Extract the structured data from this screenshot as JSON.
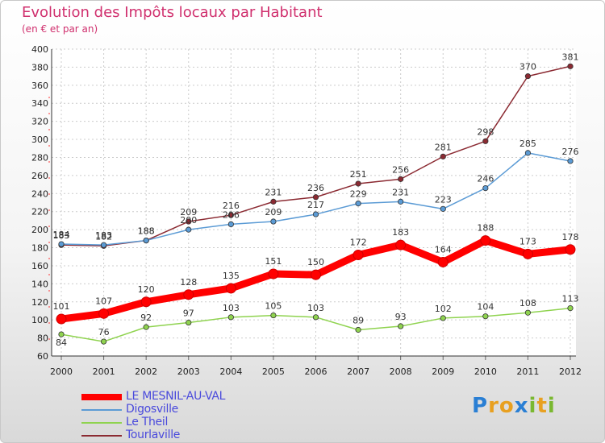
{
  "chart_data": {
    "type": "line",
    "title": "Evolution des Impôts locaux par Habitant",
    "subtitle": "(en € et par an)",
    "xlabel": "",
    "ylabel": "",
    "categories": [
      "2000",
      "2001",
      "2002",
      "2003",
      "2004",
      "2005",
      "2006",
      "2007",
      "2008",
      "2009",
      "2010",
      "2011",
      "2012"
    ],
    "ylim": [
      60,
      400
    ],
    "yticks": [
      60,
      80,
      100,
      120,
      140,
      160,
      180,
      200,
      220,
      240,
      260,
      280,
      300,
      320,
      340,
      360,
      380,
      400
    ],
    "grid": true,
    "legend_position": "bottom-left",
    "series": [
      {
        "name": "Tourlaville",
        "color": "#8b2a32",
        "values": [
          183,
          182,
          188,
          209,
          216,
          231,
          236,
          251,
          256,
          281,
          298,
          370,
          381
        ]
      },
      {
        "name": "Digosville",
        "color": "#5b9bd5",
        "values": [
          184,
          183,
          188,
          200,
          206,
          209,
          217,
          229,
          231,
          223,
          246,
          285,
          276
        ]
      },
      {
        "name": "Le Theil",
        "color": "#8fd34f",
        "values": [
          84,
          76,
          92,
          97,
          103,
          105,
          103,
          89,
          93,
          102,
          104,
          108,
          113
        ]
      },
      {
        "name": "LE MESNIL-AU-VAL",
        "color": "#ff0000",
        "values": [
          101,
          107,
          120,
          128,
          135,
          151,
          150,
          172,
          183,
          164,
          188,
          173,
          178
        ]
      }
    ]
  },
  "legend": {
    "items": [
      {
        "label": "LE MESNIL-AU-VAL",
        "color": "#ff0000"
      },
      {
        "label": "Digosville",
        "color": "#5b9bd5"
      },
      {
        "label": "Le Theil",
        "color": "#8fd34f"
      },
      {
        "label": "Tourlaville",
        "color": "#8b2a32"
      }
    ]
  },
  "logo": {
    "letters": [
      "P",
      "r",
      "o",
      "x",
      "i",
      "t",
      "i"
    ],
    "colors": [
      "#2a7fd4",
      "#e8a020",
      "#e8a020",
      "#2a7fd4",
      "#7ab830",
      "#e8a020",
      "#7ab830"
    ]
  }
}
